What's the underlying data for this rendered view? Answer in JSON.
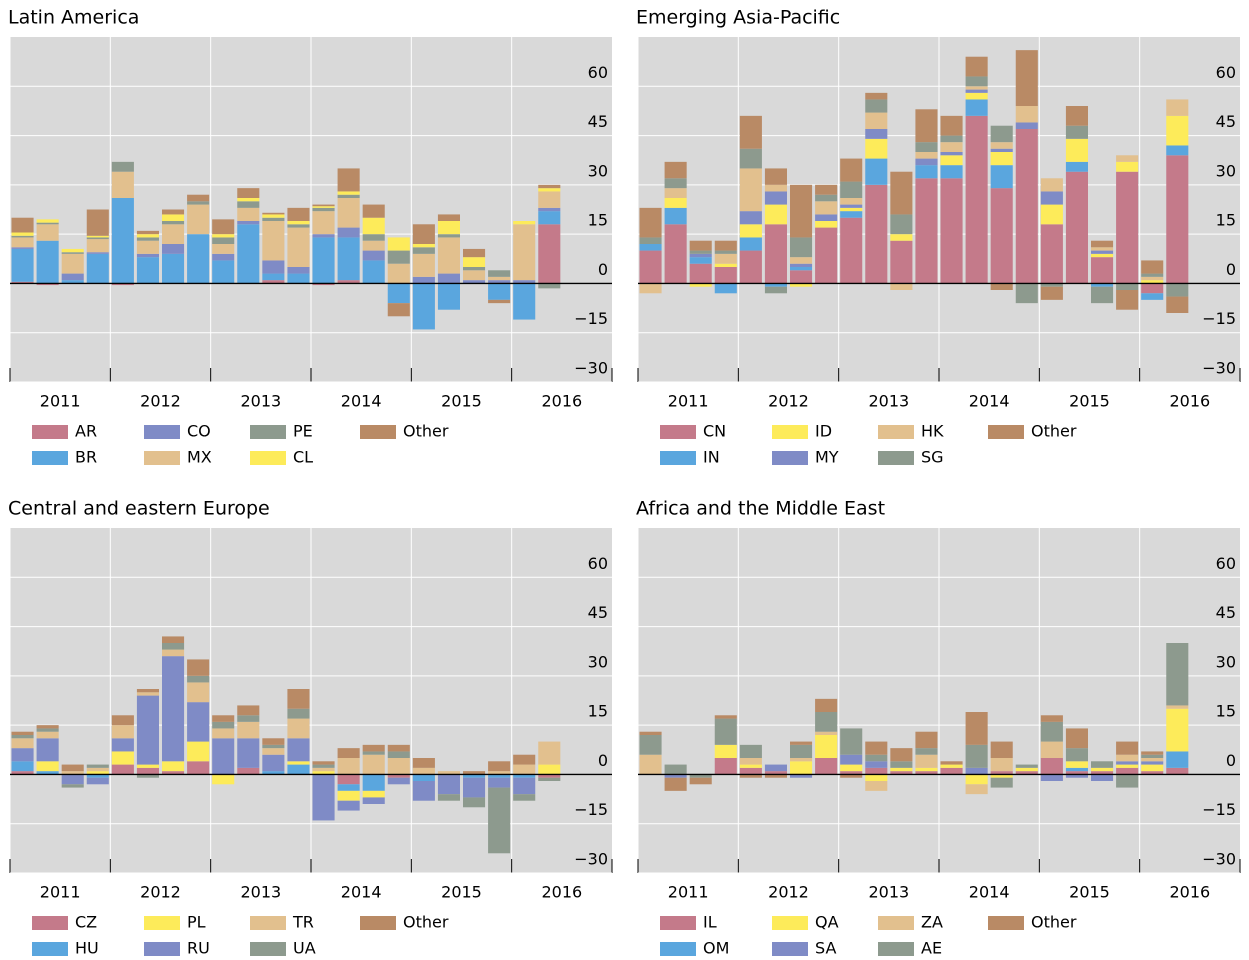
{
  "chart_data": [
    {
      "type": "bar",
      "stacked": true,
      "title": "Latin America",
      "years": [
        "2011",
        "2012",
        "2013",
        "2014",
        "2015",
        "2016"
      ],
      "ylim": [
        -30,
        75
      ],
      "yticks": [
        {
          "value": -30,
          "label": "−30"
        },
        {
          "value": -15,
          "label": "−15"
        },
        0,
        15,
        30,
        45,
        60
      ],
      "grid": true,
      "series": [
        {
          "name": "AR",
          "color": "#c47a8a",
          "values": [
            0.5,
            -0.5,
            0,
            0,
            -0.5,
            0,
            0,
            0,
            0,
            0,
            1,
            0,
            -0.5,
            1,
            0,
            0,
            0,
            0,
            0,
            0,
            0,
            18
          ]
        },
        {
          "name": "BR",
          "color": "#5aa6de",
          "values": [
            10,
            13,
            1,
            9,
            26,
            8,
            9,
            15,
            7,
            18,
            2,
            3,
            14,
            13,
            7,
            -6,
            -14,
            -8,
            0,
            -5,
            -11,
            4
          ]
        },
        {
          "name": "CO",
          "color": "#7f8bc6",
          "values": [
            0.5,
            0,
            2,
            0.5,
            0,
            1,
            3,
            0,
            2,
            1,
            4,
            2,
            1,
            3,
            3,
            0,
            2,
            3,
            1,
            1,
            1,
            1
          ]
        },
        {
          "name": "MX",
          "color": "#e2c08e",
          "values": [
            3,
            5,
            6,
            4,
            8,
            4,
            6,
            9,
            3,
            4,
            12,
            12,
            7,
            9,
            3,
            6,
            7,
            11,
            3,
            1,
            17,
            5
          ]
        },
        {
          "name": "PE",
          "color": "#8d9a8e",
          "values": [
            0.5,
            0.5,
            0.5,
            0.5,
            3,
            1,
            1,
            1,
            2,
            2,
            1,
            1,
            1,
            1,
            2,
            4,
            2,
            1,
            1,
            2,
            0,
            -1.5
          ]
        },
        {
          "name": "CL",
          "color": "#fdeb5a",
          "values": [
            1,
            1,
            1,
            0.5,
            0,
            1,
            2,
            0,
            1,
            1,
            1,
            1,
            0.5,
            1,
            5,
            4,
            1,
            4,
            3,
            0,
            1,
            1
          ]
        },
        {
          "name": "Other",
          "color": "#b98a65",
          "values": [
            4.5,
            0,
            0,
            8,
            0,
            1,
            1.5,
            2,
            4.5,
            3,
            0.5,
            4,
            0.5,
            7,
            4,
            -4,
            6,
            2,
            2.5,
            -1,
            0,
            1
          ]
        }
      ]
    },
    {
      "type": "bar",
      "stacked": true,
      "title": "Emerging Asia-Pacific",
      "years": [
        "2011",
        "2012",
        "2013",
        "2014",
        "2015",
        "2016"
      ],
      "ylim": [
        -30,
        75
      ],
      "yticks": [
        {
          "value": -30,
          "label": "−30"
        },
        {
          "value": -15,
          "label": "−15"
        },
        0,
        15,
        30,
        45,
        60
      ],
      "grid": true,
      "series": [
        {
          "name": "CN",
          "color": "#c47a8a",
          "values": [
            10,
            18,
            6,
            5,
            10,
            18,
            4,
            17,
            20,
            30,
            13,
            32,
            32,
            51,
            29,
            47,
            18,
            34,
            8,
            34,
            -3,
            39
          ]
        },
        {
          "name": "IN",
          "color": "#5aa6de",
          "values": [
            2,
            5,
            2,
            -3,
            4,
            -1,
            1,
            0,
            2,
            8,
            0,
            4,
            4,
            5,
            7,
            0,
            0,
            3,
            -1,
            0,
            -2,
            3
          ]
        },
        {
          "name": "ID",
          "color": "#fdeb5a",
          "values": [
            0,
            3,
            -1,
            1,
            4,
            6,
            -1,
            2,
            1,
            6,
            2,
            0,
            3,
            2,
            4,
            0,
            6,
            7,
            1,
            3,
            1,
            9
          ]
        },
        {
          "name": "MY",
          "color": "#7f8bc6",
          "values": [
            0,
            0,
            1,
            0,
            4,
            4,
            1,
            2,
            1,
            3,
            0,
            2,
            1,
            1,
            1,
            2,
            4,
            0,
            1,
            0,
            0,
            0
          ]
        },
        {
          "name": "HK",
          "color": "#e2c08e",
          "values": [
            -3,
            3,
            0,
            3,
            13,
            2,
            2,
            4,
            2,
            5,
            -2,
            2,
            3,
            1,
            2,
            5,
            4,
            0,
            1,
            2,
            1,
            5
          ]
        },
        {
          "name": "SG",
          "color": "#8d9a8e",
          "values": [
            2,
            3,
            1,
            1,
            6,
            -2,
            6,
            2,
            5,
            4,
            6,
            3,
            2,
            3,
            5,
            -6,
            -1,
            4,
            -5,
            -2,
            1,
            -4
          ]
        },
        {
          "name": "Other",
          "color": "#b98a65",
          "values": [
            9,
            5,
            3,
            3,
            10,
            5,
            16,
            3,
            7,
            2,
            13,
            10,
            6,
            6,
            -2,
            17,
            -4,
            6,
            2,
            -6,
            4,
            -5
          ]
        }
      ]
    },
    {
      "type": "bar",
      "stacked": true,
      "title": "Central and eastern Europe",
      "years": [
        "2011",
        "2012",
        "2013",
        "2014",
        "2015",
        "2016"
      ],
      "ylim": [
        -30,
        75
      ],
      "yticks": [
        {
          "value": -30,
          "label": "−30"
        },
        {
          "value": -15,
          "label": "−15"
        },
        0,
        15,
        30,
        45,
        60
      ],
      "grid": true,
      "series": [
        {
          "name": "CZ",
          "color": "#c47a8a",
          "values": [
            1,
            0,
            0,
            0,
            3,
            2,
            1,
            4,
            0,
            2,
            0,
            0,
            0,
            -3,
            0,
            -1,
            0,
            0,
            0,
            0,
            0,
            -1
          ]
        },
        {
          "name": "HU",
          "color": "#5aa6de",
          "values": [
            3,
            1,
            0,
            -1,
            0,
            0,
            0,
            0,
            0,
            0,
            1,
            3,
            0,
            -2,
            -5,
            0,
            -2,
            0,
            -1,
            -1,
            -1,
            0
          ]
        },
        {
          "name": "PL",
          "color": "#fdeb5a",
          "values": [
            0,
            3,
            0,
            1,
            4,
            1,
            3,
            6,
            -3,
            0,
            0,
            1,
            1,
            -3,
            -2,
            0,
            0,
            0,
            0,
            0,
            0,
            3
          ]
        },
        {
          "name": "RU",
          "color": "#7f8bc6",
          "values": [
            4,
            7,
            -3,
            -2,
            4,
            21,
            32,
            12,
            11,
            9,
            5,
            7,
            -14,
            -3,
            -2,
            -2,
            -6,
            -6,
            -6,
            -3,
            -5,
            0
          ]
        },
        {
          "name": "TR",
          "color": "#e2c08e",
          "values": [
            3,
            2,
            1,
            1,
            4,
            1,
            2,
            6,
            3,
            5,
            2,
            6,
            1,
            5,
            6,
            5,
            2,
            1,
            0,
            1,
            3,
            7
          ]
        },
        {
          "name": "UA",
          "color": "#8d9a8e",
          "values": [
            1,
            1,
            -1,
            1,
            0,
            -1,
            2,
            2,
            2,
            2,
            1,
            3,
            1,
            0,
            1,
            2,
            0,
            -2,
            -3,
            -20,
            -2,
            -1
          ]
        },
        {
          "name": "Other",
          "color": "#b98a65",
          "values": [
            1,
            1,
            2,
            0,
            3,
            1,
            2,
            5,
            2,
            3,
            2,
            6,
            1,
            3,
            2,
            2,
            3,
            0,
            1,
            3,
            3,
            0
          ]
        }
      ]
    },
    {
      "type": "bar",
      "stacked": true,
      "title": "Africa and the Middle East",
      "years": [
        "2011",
        "2012",
        "2013",
        "2014",
        "2015",
        "2016"
      ],
      "ylim": [
        -30,
        75
      ],
      "yticks": [
        {
          "value": -30,
          "label": "−30"
        },
        {
          "value": -15,
          "label": "−15"
        },
        0,
        15,
        30,
        45,
        60
      ],
      "grid": true,
      "series": [
        {
          "name": "IL",
          "color": "#c47a8a",
          "values": [
            0,
            0,
            0,
            5,
            2,
            1,
            0,
            5,
            1,
            2,
            1,
            1,
            2,
            0,
            1,
            1,
            5,
            1,
            1,
            2,
            1,
            2
          ]
        },
        {
          "name": "OM",
          "color": "#5aa6de",
          "values": [
            0,
            0,
            0,
            0,
            0,
            0,
            0,
            0,
            0,
            0,
            0,
            0,
            0,
            0,
            0,
            0,
            0,
            1,
            0,
            0,
            0,
            5
          ]
        },
        {
          "name": "QA",
          "color": "#fdeb5a",
          "values": [
            0,
            0,
            0,
            4,
            1,
            0,
            4,
            7,
            2,
            -2,
            1,
            1,
            1,
            -3,
            -1,
            1,
            0,
            2,
            1,
            1,
            2,
            13
          ]
        },
        {
          "name": "SA",
          "color": "#7f8bc6",
          "values": [
            0,
            -1,
            0,
            0,
            0,
            2,
            -1,
            0,
            3,
            2,
            0,
            0,
            0,
            2,
            0,
            0,
            -2,
            -1,
            -2,
            1,
            1,
            0
          ]
        },
        {
          "name": "ZA",
          "color": "#e2c08e",
          "values": [
            6,
            0,
            0,
            0,
            2,
            0,
            1,
            1,
            0,
            -3,
            0,
            4,
            0,
            -3,
            4,
            0,
            5,
            0,
            0,
            2,
            1,
            1
          ]
        },
        {
          "name": "AE",
          "color": "#8d9a8e",
          "values": [
            6,
            3,
            -1,
            8,
            4,
            0,
            4,
            6,
            8,
            2,
            2,
            2,
            0,
            7,
            -3,
            1,
            6,
            4,
            2,
            -4,
            1,
            19
          ]
        },
        {
          "name": "Other",
          "color": "#b98a65",
          "values": [
            1,
            -4,
            -2,
            1,
            -1,
            -1,
            1,
            4,
            -1,
            4,
            4,
            5,
            1,
            10,
            5,
            0,
            2,
            6,
            0,
            4,
            1,
            0
          ]
        }
      ]
    }
  ]
}
